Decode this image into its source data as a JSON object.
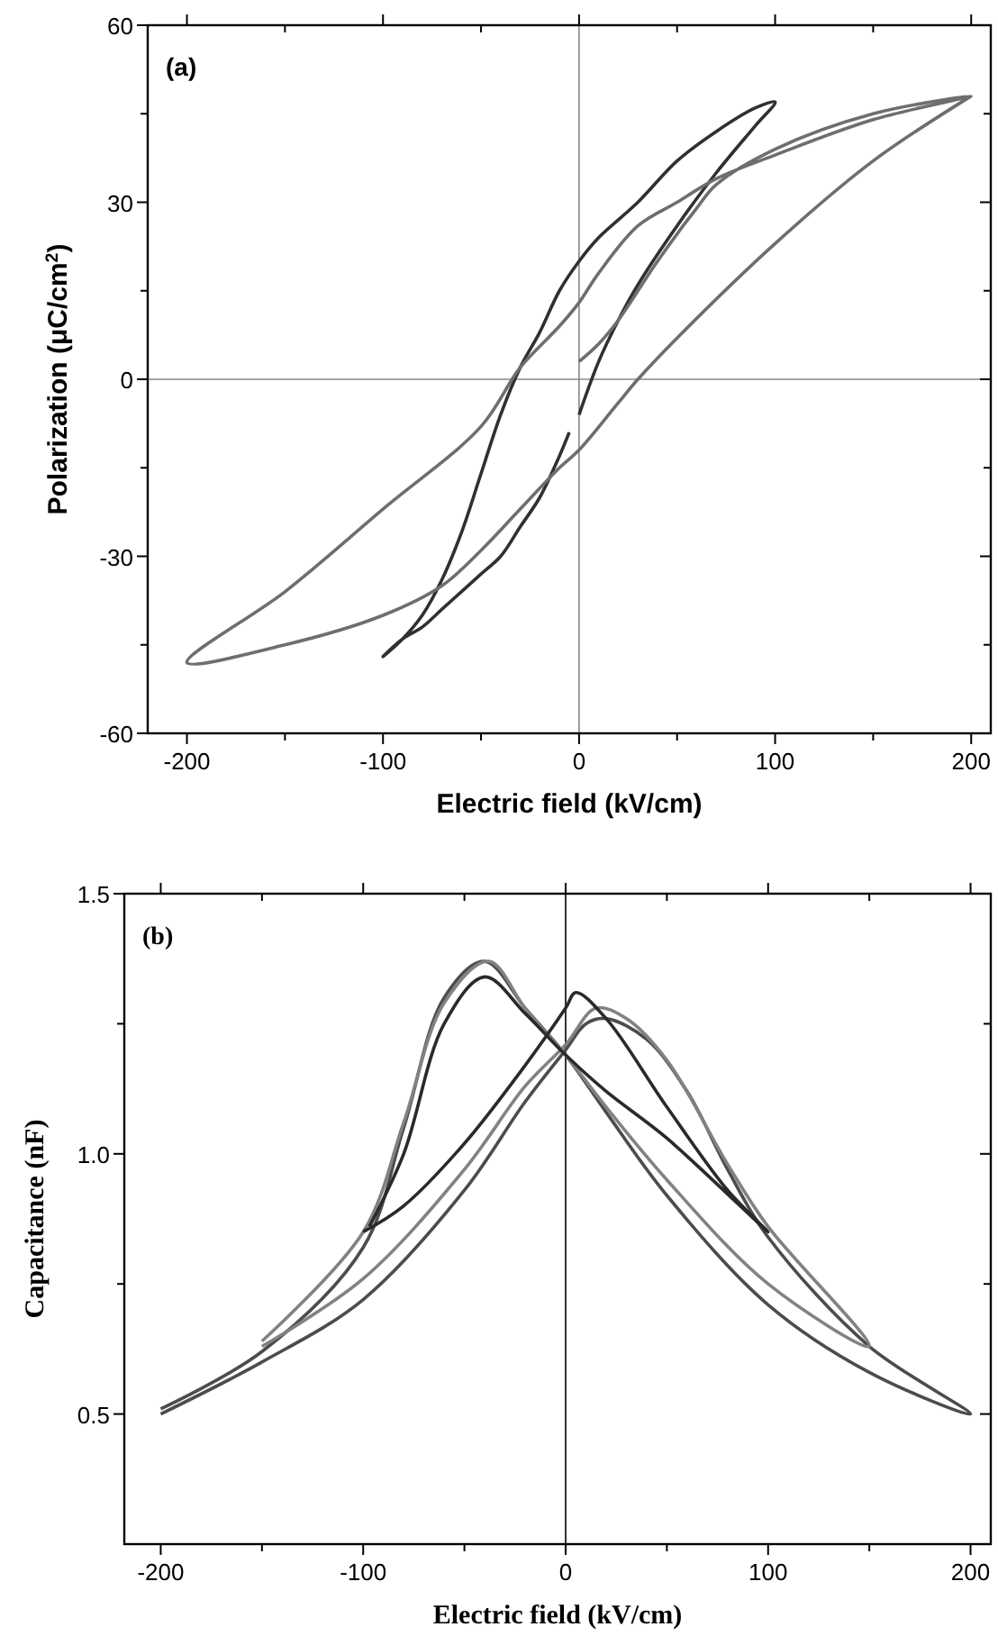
{
  "chart_data": [
    {
      "type": "line",
      "xlabel": "Electric field (kV/cm)",
      "ylabel": "Polarization (μC/cm$^{2}$)",
      "annotations": [
        "(a)"
      ],
      "xlim": [
        -220,
        210
      ],
      "ylim": [
        -60,
        60
      ],
      "xticks": [
        -200,
        {
          "value": -150,
          "label": null
        },
        -100,
        {
          "value": -50,
          "label": null
        },
        0,
        {
          "value": 50,
          "label": null
        },
        100,
        {
          "value": 150,
          "label": null
        },
        200
      ],
      "yticks": [
        -60,
        {
          "value": -45,
          "label": null
        },
        -30,
        {
          "value": -15,
          "label": null
        },
        0,
        {
          "value": 15,
          "label": null
        },
        30,
        {
          "value": 45,
          "label": null
        },
        60
      ],
      "ref_lines": [
        {
          "axis": "x",
          "value": 0,
          "color": "#888888"
        },
        {
          "axis": "y",
          "value": 0,
          "color": "#888888"
        }
      ],
      "grid": false,
      "series": [
        {
          "color": "#303030",
          "x": [
            0,
            10,
            20,
            30,
            50,
            70,
            90,
            100,
            90,
            70,
            50,
            30,
            10,
            0,
            -10,
            -20,
            -30,
            -40,
            -50,
            -60,
            -70,
            -80,
            -90,
            -100,
            -90,
            -80,
            -70,
            -60,
            -50,
            -40,
            -30,
            -20,
            -10,
            -5
          ],
          "values": [
            -6,
            3,
            10,
            16,
            26,
            35,
            43,
            47,
            46,
            42,
            37,
            30,
            24,
            20,
            15,
            8,
            2,
            -6,
            -16,
            -26,
            -34,
            -40,
            -44,
            -47,
            -44,
            -42,
            -39,
            -36,
            -33,
            -30,
            -25,
            -20,
            -13,
            -9
          ]
        },
        {
          "color": "#6e6e6e",
          "x": [
            0,
            10,
            20,
            40,
            60,
            70,
            100,
            150,
            200,
            150,
            100,
            70,
            50,
            30,
            10,
            0,
            -10,
            -30,
            -50,
            -100,
            -150,
            -200,
            -150,
            -100,
            -70,
            -50,
            -30,
            -10,
            0,
            20,
            30,
            50,
            100,
            150,
            200
          ],
          "values": [
            3,
            6,
            10,
            20,
            29,
            33,
            39,
            45,
            48,
            44,
            38,
            34,
            30,
            26,
            18,
            13,
            9,
            2,
            -8,
            -22,
            -36,
            -48,
            -45,
            -40,
            -35,
            -29,
            -22,
            -15,
            -12,
            -4,
            0,
            7,
            23,
            37,
            48
          ]
        }
      ]
    },
    {
      "type": "line",
      "xlabel": "Electric field (kV/cm)",
      "ylabel": "Capacitance (nF)",
      "annotations": [
        "(b)"
      ],
      "xlim": [
        -218,
        210
      ],
      "ylim": [
        0.25,
        1.5
      ],
      "xticks": [
        -200,
        {
          "value": -150,
          "label": null
        },
        -100,
        {
          "value": -50,
          "label": null
        },
        0,
        {
          "value": 50,
          "label": null
        },
        100,
        {
          "value": 150,
          "label": null
        },
        200
      ],
      "yticks": [
        {
          "value": 0.5,
          "label": "0.5"
        },
        {
          "value": 0.75,
          "label": null
        },
        {
          "value": 1,
          "label": "1.0"
        },
        {
          "value": 1.25,
          "label": null
        },
        {
          "value": 1.5,
          "label": "1.5"
        }
      ],
      "ref_lines": [
        {
          "axis": "x",
          "value": 0,
          "color": "#000000"
        }
      ],
      "grid": false,
      "series": [
        {
          "color": "#4c4c4c",
          "x": [
            -200,
            -150,
            -100,
            -50,
            -20,
            0,
            10,
            20,
            40,
            60,
            80,
            100,
            150,
            200,
            150,
            100,
            50,
            20,
            0,
            -20,
            -40,
            -60,
            -80,
            -100,
            -150,
            -200
          ],
          "values": [
            0.5,
            0.6,
            0.72,
            0.93,
            1.1,
            1.2,
            1.25,
            1.26,
            1.22,
            1.12,
            0.97,
            0.84,
            0.63,
            0.5,
            0.58,
            0.71,
            0.92,
            1.08,
            1.19,
            1.28,
            1.37,
            1.3,
            1.05,
            0.82,
            0.62,
            0.51
          ]
        },
        {
          "color": "#828282",
          "x": [
            -150,
            -100,
            -50,
            -20,
            0,
            15,
            30,
            50,
            80,
            100,
            150,
            100,
            50,
            20,
            0,
            -20,
            -38,
            -60,
            -80,
            -100,
            -150
          ],
          "values": [
            0.63,
            0.76,
            0.97,
            1.13,
            1.21,
            1.28,
            1.26,
            1.18,
            0.98,
            0.86,
            0.63,
            0.75,
            0.95,
            1.09,
            1.19,
            1.28,
            1.37,
            1.29,
            1.06,
            0.85,
            0.64
          ]
        },
        {
          "color": "#2a2a2a",
          "x": [
            -100,
            -80,
            -50,
            -20,
            0,
            5,
            20,
            50,
            80,
            100,
            50,
            20,
            0,
            -20,
            -40,
            -60,
            -80,
            -97
          ],
          "values": [
            0.85,
            0.9,
            1.02,
            1.17,
            1.28,
            1.31,
            1.26,
            1.09,
            0.93,
            0.85,
            1.03,
            1.12,
            1.19,
            1.27,
            1.34,
            1.25,
            1,
            0.86
          ]
        }
      ]
    }
  ]
}
